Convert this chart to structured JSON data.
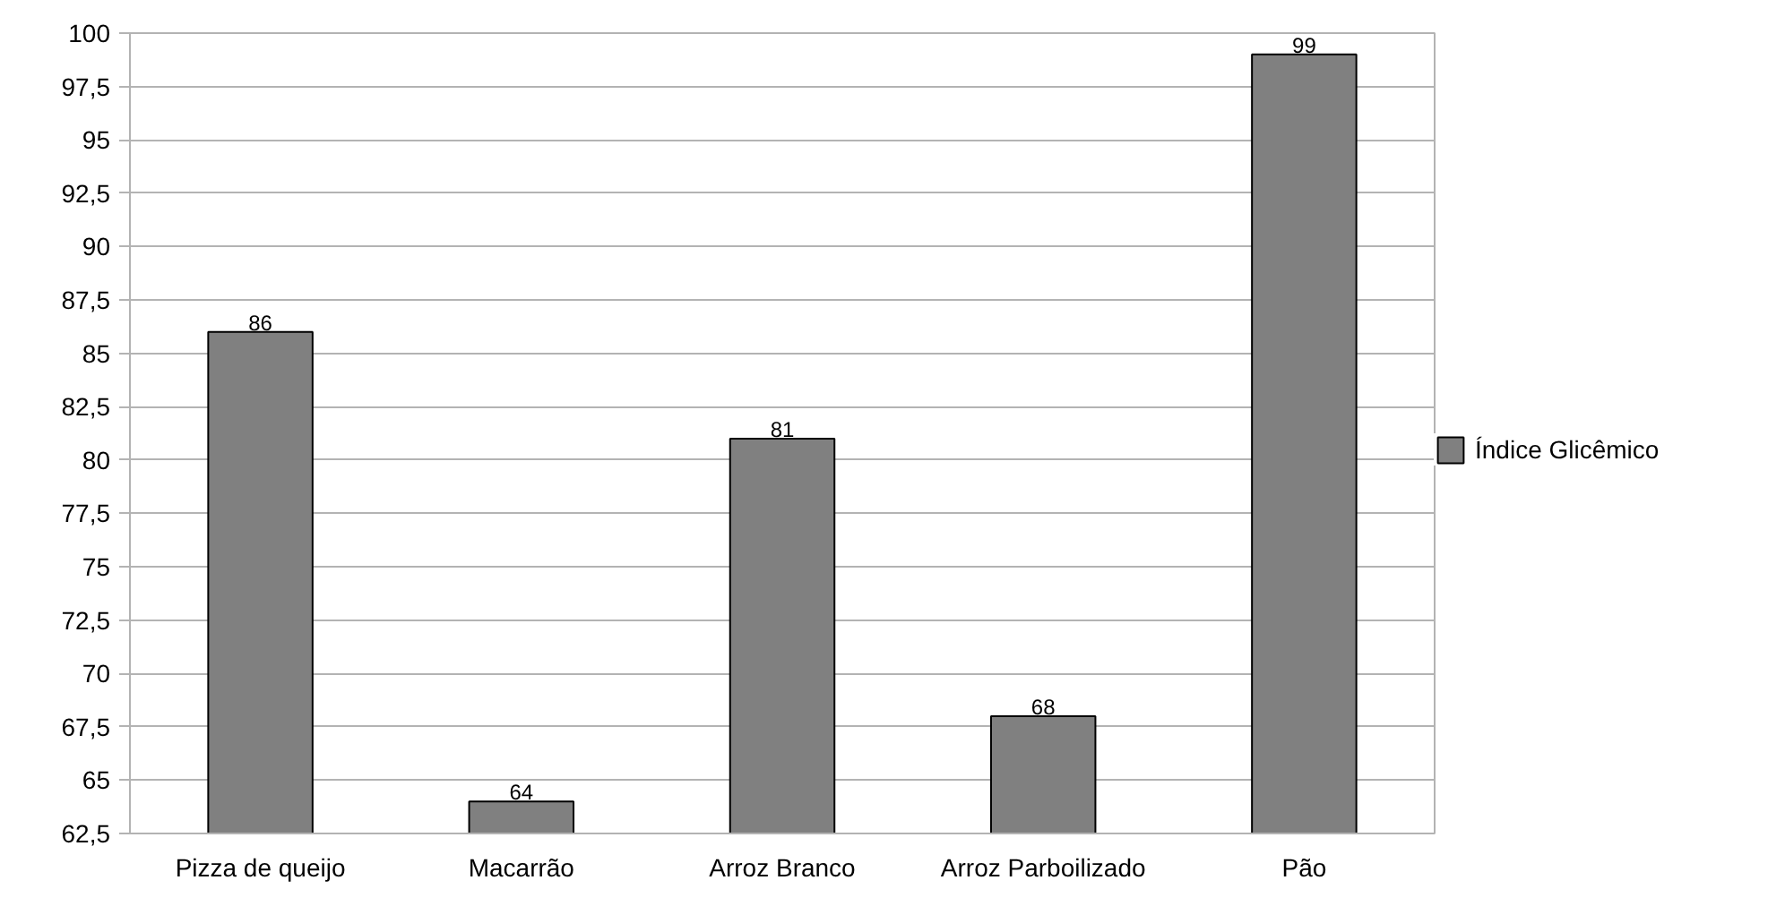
{
  "chart_data": {
    "type": "bar",
    "categories": [
      "Pizza de queijo",
      "Macarrão",
      "Arroz Branco",
      "Arroz Parboilizado",
      "Pão"
    ],
    "series": [
      {
        "name": "Índice Glicêmico",
        "color": "#808080",
        "values": [
          86,
          64,
          81,
          68,
          99
        ]
      }
    ],
    "ylim": [
      62.5,
      100
    ],
    "yticks": [
      {
        "value": 62.5,
        "label": "62,5"
      },
      {
        "value": 65,
        "label": "65"
      },
      {
        "value": 67.5,
        "label": "67,5"
      },
      {
        "value": 70,
        "label": "70"
      },
      {
        "value": 72.5,
        "label": "72,5"
      },
      {
        "value": 75,
        "label": "75"
      },
      {
        "value": 77.5,
        "label": "77,5"
      },
      {
        "value": 80,
        "label": "80"
      },
      {
        "value": 82.5,
        "label": "82,5"
      },
      {
        "value": 85,
        "label": "85"
      },
      {
        "value": 87.5,
        "label": "87,5"
      },
      {
        "value": 90,
        "label": "90"
      },
      {
        "value": 92.5,
        "label": "92,5"
      },
      {
        "value": 95,
        "label": "95"
      },
      {
        "value": 97.5,
        "label": "97,5"
      },
      {
        "value": 100,
        "label": "100"
      }
    ],
    "grid": "y",
    "legend": "right",
    "data_labels": true
  }
}
